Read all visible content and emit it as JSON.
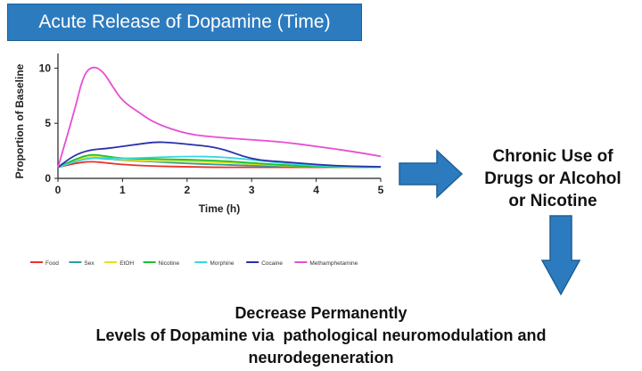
{
  "header": {
    "title": "Acute Release of Dopamine (Time)"
  },
  "chart_data": {
    "type": "line",
    "title": "Acute Release of Dopamine (Time)",
    "xlabel": "Time (h)",
    "ylabel": "Proportion of Baseline",
    "xlim": [
      0,
      5
    ],
    "ylim": [
      0,
      11
    ],
    "xticks": [
      0,
      1,
      2,
      3,
      4,
      5
    ],
    "yticks": [
      0,
      5,
      10
    ],
    "grid": false,
    "legend_position": "bottom",
    "series": [
      {
        "name": "Food",
        "color": "#e8322e",
        "x": [
          0,
          0.25,
          0.5,
          0.75,
          1,
          1.5,
          2,
          2.5,
          3,
          3.5,
          4,
          4.5,
          5
        ],
        "y": [
          1,
          1.35,
          1.55,
          1.4,
          1.25,
          1.1,
          1.05,
          1.0,
          1.0,
          1.0,
          1.0,
          1.0,
          1.0
        ]
      },
      {
        "name": "Sex",
        "color": "#2a9fa3",
        "x": [
          0,
          0.25,
          0.5,
          0.75,
          1,
          1.5,
          2,
          2.5,
          3,
          3.5,
          4,
          4.5,
          5
        ],
        "y": [
          1,
          1.5,
          1.85,
          1.8,
          1.65,
          1.5,
          1.35,
          1.25,
          1.15,
          1.1,
          1.05,
          1.0,
          1.0
        ]
      },
      {
        "name": "EtOH",
        "color": "#e4e01a",
        "x": [
          0,
          0.25,
          0.5,
          0.75,
          1,
          1.5,
          2,
          2.5,
          3,
          3.5,
          4,
          4.5,
          5
        ],
        "y": [
          1,
          1.6,
          2.0,
          1.85,
          1.7,
          1.55,
          1.55,
          1.45,
          1.3,
          1.15,
          1.05,
          1.0,
          1.0
        ]
      },
      {
        "name": "Nicotine",
        "color": "#1fbf2f",
        "x": [
          0,
          0.25,
          0.5,
          0.75,
          1,
          1.5,
          2,
          2.5,
          3,
          3.5,
          4,
          4.5,
          5
        ],
        "y": [
          1,
          1.7,
          2.2,
          2.0,
          1.8,
          1.75,
          1.7,
          1.6,
          1.4,
          1.2,
          1.05,
          1.0,
          1.0
        ]
      },
      {
        "name": "Morphine",
        "color": "#35d8e0",
        "x": [
          0,
          0.25,
          0.5,
          0.75,
          1,
          1.5,
          2,
          2.5,
          3,
          3.5,
          4,
          4.5,
          5
        ],
        "y": [
          1,
          1.5,
          1.85,
          1.85,
          1.8,
          1.9,
          2.0,
          1.95,
          1.7,
          1.35,
          1.15,
          1.05,
          1.0
        ]
      },
      {
        "name": "Cocaine",
        "color": "#2b2fa8",
        "x": [
          0,
          0.25,
          0.5,
          0.75,
          1,
          1.25,
          1.5,
          1.75,
          2,
          2.5,
          3,
          3.5,
          4,
          4.5,
          5
        ],
        "y": [
          1,
          2.1,
          2.6,
          2.7,
          2.9,
          3.1,
          3.3,
          3.25,
          3.1,
          2.8,
          1.7,
          1.5,
          1.25,
          1.1,
          1.05
        ]
      },
      {
        "name": "Methamphetamine",
        "color": "#e64ed3",
        "x": [
          0,
          0.25,
          0.4,
          0.55,
          0.7,
          0.85,
          1,
          1.25,
          1.5,
          2,
          2.5,
          3,
          3.5,
          4,
          4.5,
          5
        ],
        "y": [
          1,
          6.0,
          9.5,
          10.2,
          9.7,
          8.3,
          7.0,
          6.0,
          5.0,
          4.0,
          3.7,
          3.5,
          3.3,
          2.9,
          2.5,
          2.0
        ]
      }
    ]
  },
  "annotations": {
    "right_lines": [
      "Chronic Use of",
      "Drugs or Alcohol",
      "or Nicotine"
    ],
    "bottom_lines": [
      "Decrease Permanently",
      "Levels of Dopamine via  pathological neuromodulation and",
      "neurodegeneration"
    ]
  }
}
